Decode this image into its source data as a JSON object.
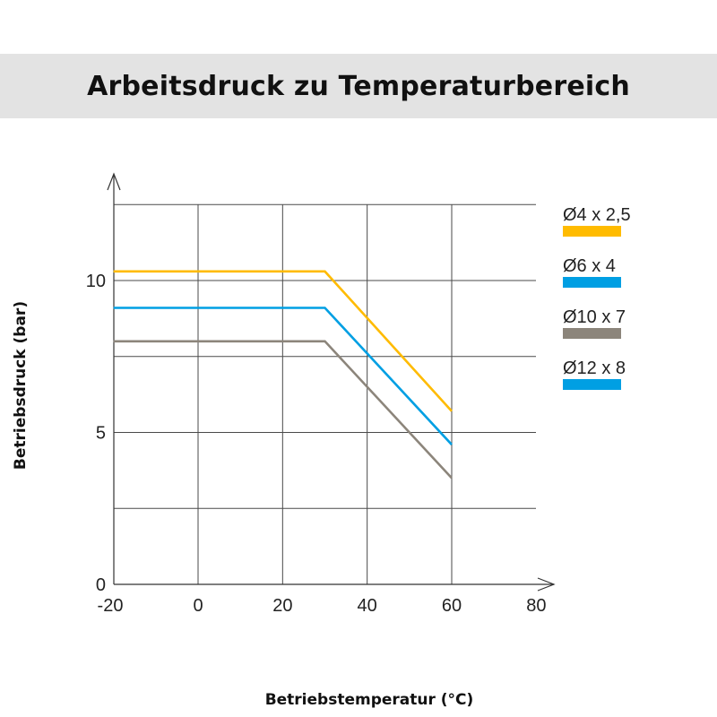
{
  "chart_data": {
    "type": "line",
    "title": "Arbeitsdruck zu Temperaturbereich",
    "xlabel": "Betriebstemperatur (°C)",
    "ylabel": "Betriebsdruck (bar)",
    "xlim": [
      -20,
      80
    ],
    "ylim": [
      0,
      12.5
    ],
    "x_ticks": [
      "-20",
      "0",
      "20",
      "40",
      "60",
      "80"
    ],
    "y_ticks": [
      "0",
      "5",
      "10"
    ],
    "grid": true,
    "legend_position": "right",
    "series": [
      {
        "name": "Ø4 x 2,5",
        "color": "#ffbb00",
        "x": [
          -20,
          30,
          60
        ],
        "y": [
          10.3,
          10.3,
          5.7
        ]
      },
      {
        "name": "Ø6 x 4",
        "color": "#009fe3",
        "x": [
          -20,
          30,
          60
        ],
        "y": [
          9.1,
          9.1,
          4.6
        ]
      },
      {
        "name": "Ø10 x 7",
        "color": "#8c857b",
        "x": [
          -20,
          30,
          60
        ],
        "y": [
          8.0,
          8.0,
          3.5
        ]
      },
      {
        "name": "Ø12 x 8",
        "color": "#009fe3",
        "x": [],
        "y": []
      }
    ]
  }
}
